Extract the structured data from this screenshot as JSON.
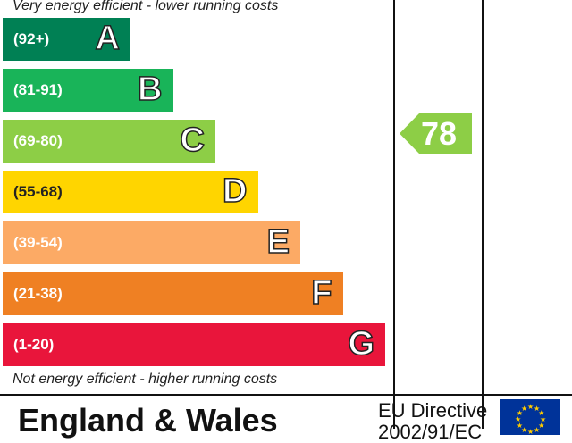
{
  "chart_data": {
    "type": "bar",
    "top_caption": "Very energy efficient - lower running costs",
    "bottom_caption": "Not energy efficient - higher running costs",
    "categories": [
      "A",
      "B",
      "C",
      "D",
      "E",
      "F",
      "G"
    ],
    "ranges": [
      "(92+)",
      "(81-91)",
      "(69-80)",
      "(55-68)",
      "(39-54)",
      "(21-38)",
      "(1-20)"
    ],
    "colors": [
      "#008054",
      "#19b459",
      "#8dce46",
      "#ffd500",
      "#fcaa65",
      "#ef8023",
      "#e9153b"
    ],
    "current": {
      "value": "78",
      "color": "#8dce46"
    },
    "potential": null
  },
  "footer": {
    "region": "England & Wales",
    "directive_line1": "EU Directive",
    "directive_line2": "2002/91/EC",
    "flag": "eu-flag-icon"
  }
}
